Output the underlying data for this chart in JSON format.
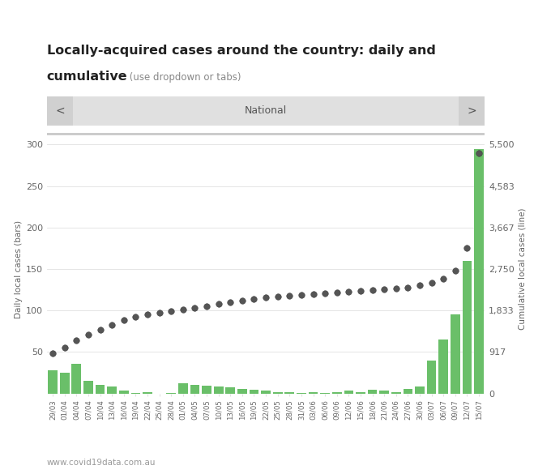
{
  "title_line1": "Locally-acquired cases around the country: daily and",
  "title_bold": "cumulative",
  "title_suffix": " (use dropdown or tabs)",
  "nav_label": "National",
  "footer": "www.covid19data.com.au",
  "dates": [
    "29/03",
    "01/04",
    "04/04",
    "07/04",
    "10/04",
    "13/04",
    "16/04",
    "19/04",
    "22/04",
    "25/04",
    "28/04",
    "01/05",
    "04/05",
    "07/05",
    "10/05",
    "13/05",
    "16/05",
    "19/05",
    "22/05",
    "25/05",
    "28/05",
    "31/05",
    "03/06",
    "06/06",
    "09/06",
    "12/06",
    "15/06",
    "18/06",
    "21/06",
    "24/06",
    "27/06",
    "30/06",
    "03/07",
    "06/07",
    "09/07",
    "12/07",
    "15/07"
  ],
  "daily_cases": [
    28,
    25,
    36,
    15,
    10,
    8,
    3,
    1,
    2,
    0,
    1,
    12,
    10,
    9,
    8,
    7,
    5,
    4,
    3,
    2,
    2,
    1,
    2,
    1,
    2,
    3,
    2,
    4,
    3,
    2,
    5,
    8,
    40,
    65,
    95,
    160,
    295
  ],
  "dot_y_left": [
    48,
    55,
    64,
    71,
    77,
    83,
    88,
    92,
    95,
    97,
    99,
    101,
    103,
    105,
    108,
    110,
    112,
    114,
    116,
    117,
    118,
    119,
    120,
    121,
    122,
    123,
    124,
    125,
    126,
    127,
    128,
    130,
    133,
    138,
    148,
    175,
    290
  ],
  "bar_color": "#6abf69",
  "dot_facecolor": "#555555",
  "dot_edgecolor": "#333333",
  "background_color": "#ffffff",
  "left_ylim": [
    0,
    300
  ],
  "left_yticks": [
    50,
    100,
    150,
    200,
    250,
    300
  ],
  "right_ylim": [
    0,
    5500
  ],
  "right_yticks": [
    0,
    917,
    1833,
    2750,
    3667,
    4583,
    5500
  ],
  "right_ytick_labels": [
    "0",
    "917",
    "1,833",
    "2,750",
    "3,667",
    "4,583",
    "5,500"
  ],
  "nav_bg": "#e0e0e0",
  "nav_btn_bg": "#d0d0d0",
  "separator_color": "#cccccc",
  "grid_color": "#e0e0e0",
  "tick_label_color": "#666666",
  "axis_label_color": "#666666",
  "title_color": "#222222",
  "footer_color": "#999999",
  "nav_text_color": "#555555"
}
